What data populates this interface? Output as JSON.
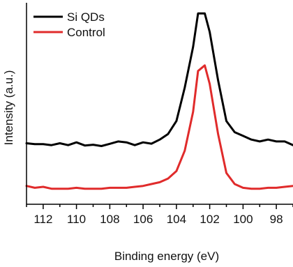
{
  "chart_data": {
    "type": "line",
    "title": "",
    "xlabel": "Binding energy (eV)",
    "ylabel": "Intensity (a.u.)",
    "x_axis_reversed": true,
    "xlim": [
      113,
      97
    ],
    "ylim": [
      0,
      1
    ],
    "x_ticks": [
      112,
      110,
      108,
      106,
      104,
      102,
      100,
      98
    ],
    "y_ticks_shown": false,
    "grid": false,
    "legend": {
      "position": "top-left",
      "entries": [
        "Si QDs",
        "Control"
      ]
    },
    "series": [
      {
        "name": "Si QDs",
        "color": "#000000",
        "x": [
          113,
          112.5,
          112,
          111.5,
          111,
          110.5,
          110,
          109.5,
          109,
          108.5,
          108,
          107.5,
          107,
          106.5,
          106,
          105.5,
          105,
          104.5,
          104,
          103.5,
          103,
          102.7,
          102.3,
          102,
          101.5,
          101,
          100.5,
          100,
          99.5,
          99,
          98.5,
          98,
          97.5,
          97
        ],
        "y": [
          0.28,
          0.275,
          0.275,
          0.27,
          0.28,
          0.27,
          0.285,
          0.268,
          0.272,
          0.265,
          0.277,
          0.29,
          0.285,
          0.27,
          0.285,
          0.278,
          0.3,
          0.33,
          0.4,
          0.58,
          0.8,
          0.98,
          0.98,
          0.88,
          0.62,
          0.4,
          0.34,
          0.32,
          0.3,
          0.29,
          0.3,
          0.29,
          0.29,
          0.27
        ]
      },
      {
        "name": "Control",
        "color": "#e02b2b",
        "x": [
          113,
          112.5,
          112,
          111.5,
          111,
          110.5,
          110,
          109.5,
          109,
          108.5,
          108,
          107.5,
          107,
          106.5,
          106,
          105.5,
          105,
          104.5,
          104,
          103.5,
          103,
          102.7,
          102.3,
          102,
          101.5,
          101,
          100.5,
          100,
          99.5,
          99,
          98.5,
          98,
          97.5,
          97
        ],
        "y": [
          0.05,
          0.04,
          0.045,
          0.035,
          0.035,
          0.035,
          0.04,
          0.035,
          0.035,
          0.035,
          0.04,
          0.04,
          0.04,
          0.045,
          0.05,
          0.06,
          0.07,
          0.09,
          0.13,
          0.24,
          0.45,
          0.67,
          0.7,
          0.6,
          0.33,
          0.12,
          0.06,
          0.04,
          0.035,
          0.035,
          0.04,
          0.04,
          0.045,
          0.05
        ]
      }
    ]
  }
}
